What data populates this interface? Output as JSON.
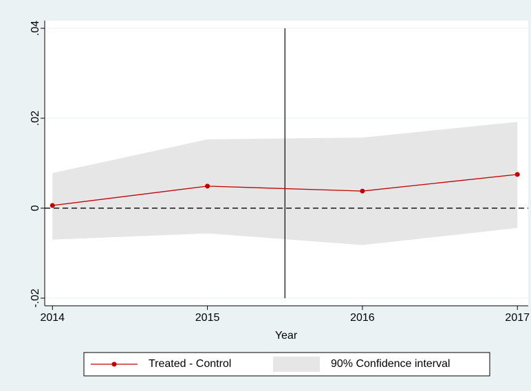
{
  "chart_data": {
    "type": "line",
    "x_label": "Year",
    "x": [
      2014,
      2015,
      2016,
      2017
    ],
    "series": [
      {
        "name": "Treated - Control",
        "color": "#c00000",
        "values": [
          0.0006,
          0.0049,
          0.0038,
          0.0075
        ]
      }
    ],
    "ci": {
      "name": "90% Confidence interval",
      "color": "#e6e6e6",
      "upper": [
        0.0078,
        0.0153,
        0.0157,
        0.0192
      ],
      "lower": [
        -0.007,
        -0.0056,
        -0.0082,
        -0.0044
      ]
    },
    "xlim": [
      2013.95,
      2017.07
    ],
    "xticks": [
      2014,
      2015,
      2016,
      2017
    ],
    "ylim": [
      -0.0217,
      0.0417
    ],
    "yticks": [
      {
        "value": -0.02,
        "label": "-.02"
      },
      0,
      {
        "value": 0.02,
        "label": ".02"
      },
      {
        "value": 0.04,
        "label": ".04"
      }
    ],
    "grid": true,
    "yline": 0,
    "xline": {
      "x": 2015.5,
      "range": [
        -0.02,
        0.04
      ]
    },
    "legend": "bottom"
  }
}
